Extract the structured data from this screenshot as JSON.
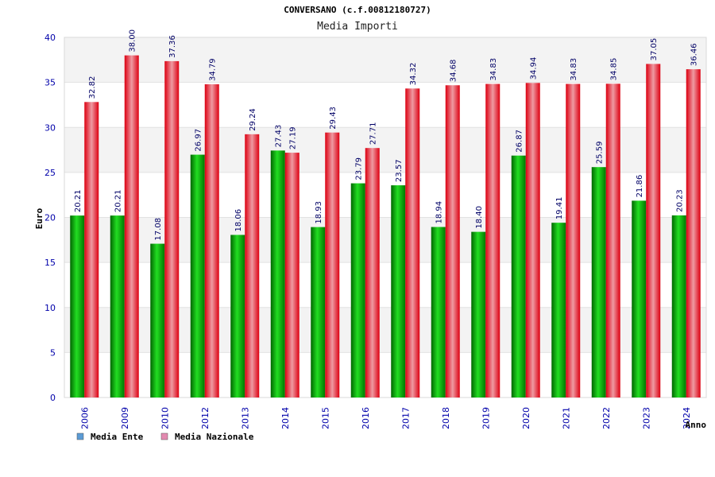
{
  "chart_data": {
    "type": "bar",
    "title": "CONVERSANO (c.f.00812180727)",
    "subtitle": "Media Importi",
    "ylabel": "Euro",
    "xlabel": "Anno",
    "ylim": [
      0,
      40
    ],
    "yticks": [
      0,
      5,
      10,
      15,
      20,
      25,
      30,
      35,
      40
    ],
    "grid": true,
    "legend_position": "bottom-left",
    "categories": [
      "2006",
      "2009",
      "2010",
      "2012",
      "2013",
      "2014",
      "2015",
      "2016",
      "2017",
      "2018",
      "2019",
      "2020",
      "2021",
      "2022",
      "2023",
      "2024"
    ],
    "series": [
      {
        "name": "Media Ente",
        "color": "#00aa00",
        "legend_color": "#5b9bd5",
        "values": [
          20.21,
          20.21,
          17.08,
          26.97,
          18.06,
          27.43,
          18.93,
          23.79,
          23.57,
          18.94,
          18.4,
          26.87,
          19.41,
          25.59,
          21.86,
          20.23
        ],
        "labels": [
          "20.21",
          "20.21",
          "17.08",
          "26.97",
          "18.06",
          "27.43",
          "18.93",
          "23.79",
          "23.57",
          "18.94",
          "18.40",
          "26.87",
          "19.41",
          "25.59",
          "21.86",
          "20.23"
        ]
      },
      {
        "name": "Media Nazionale",
        "color": "#ee1122",
        "legend_color": "#e38ab0",
        "values": [
          32.82,
          38.0,
          37.36,
          34.79,
          29.24,
          27.19,
          29.43,
          27.71,
          34.32,
          34.68,
          34.83,
          34.94,
          34.83,
          34.85,
          37.05,
          36.46
        ],
        "labels": [
          "32.82",
          "38.00",
          "37.36",
          "34.79",
          "29.24",
          "27.19",
          "29.43",
          "27.71",
          "34.32",
          "34.68",
          "34.83",
          "34.94",
          "34.83",
          "34.85",
          "37.05",
          "36.46"
        ]
      }
    ]
  }
}
